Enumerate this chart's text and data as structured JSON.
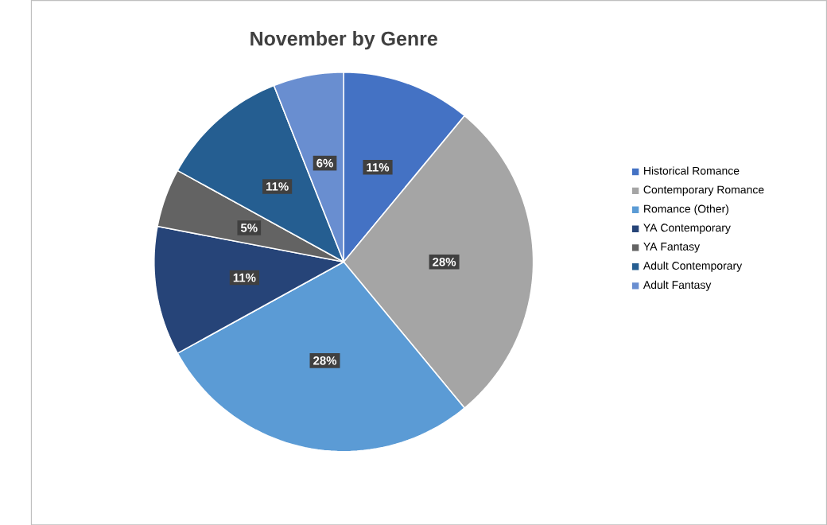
{
  "chart_data": {
    "type": "pie",
    "title": "November by Genre",
    "categories": [
      "Historical Romance",
      "Contemporary Romance",
      "Romance (Other)",
      "YA Contemporary",
      "YA Fantasy",
      "Adult Contemporary",
      "Adult Fantasy"
    ],
    "values": [
      11,
      28,
      28,
      11,
      5,
      11,
      6
    ],
    "value_labels": [
      "11%",
      "28%",
      "28%",
      "11%",
      "5%",
      "11%",
      "6%"
    ],
    "colors": [
      "#4472c4",
      "#a5a5a5",
      "#5b9bd5",
      "#264478",
      "#636363",
      "#255e91",
      "#698ed0"
    ],
    "legend": "right"
  }
}
